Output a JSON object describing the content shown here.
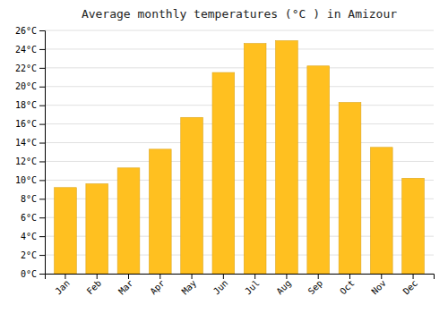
{
  "chart_data": {
    "type": "bar",
    "title": "Average monthly temperatures (°C ) in Amizour",
    "categories": [
      "Jan",
      "Feb",
      "Mar",
      "Apr",
      "May",
      "Jun",
      "Jul",
      "Aug",
      "Sep",
      "Oct",
      "Nov",
      "Dec"
    ],
    "values": [
      9.2,
      9.6,
      11.3,
      13.3,
      16.7,
      21.5,
      24.6,
      24.9,
      22.2,
      18.3,
      13.5,
      10.2
    ],
    "color": "#FFC020",
    "ylim": [
      0,
      26
    ],
    "yticks": [
      {
        "value": 0,
        "label": "0°C"
      },
      {
        "value": 2,
        "label": "2°C"
      },
      {
        "value": 4,
        "label": "4°C"
      },
      {
        "value": 6,
        "label": "6°C"
      },
      {
        "value": 8,
        "label": "8°C"
      },
      {
        "value": 10,
        "label": "10°C"
      },
      {
        "value": 12,
        "label": "12°C"
      },
      {
        "value": 14,
        "label": "14°C"
      },
      {
        "value": 16,
        "label": "16°C"
      },
      {
        "value": 18,
        "label": "18°C"
      },
      {
        "value": 20,
        "label": "20°C"
      },
      {
        "value": 22,
        "label": "22°C"
      },
      {
        "value": 24,
        "label": "24°C"
      },
      {
        "value": 26,
        "label": "26°C"
      }
    ],
    "grid": true
  }
}
